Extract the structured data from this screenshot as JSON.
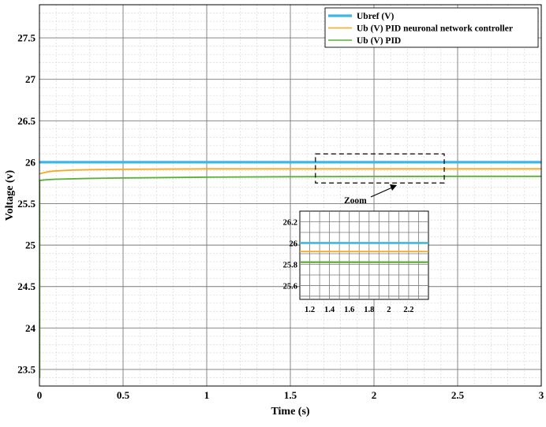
{
  "chart_data": {
    "type": "line",
    "title": "",
    "xlabel": "Time (s)",
    "ylabel": "Voltage (v)",
    "xlim": [
      0,
      3
    ],
    "ylim": [
      23.3,
      27.9
    ],
    "grid": "major and minor",
    "legend_position": "top-right",
    "x_ticks": [
      "0",
      "0.5",
      "1",
      "1.5",
      "2",
      "2.5",
      "3"
    ],
    "y_ticks": [
      "23.5",
      "24",
      "24.5",
      "25",
      "25.5",
      "26",
      "26.5",
      "27",
      "27.5"
    ],
    "series": [
      {
        "name": "Ubref (V)",
        "color": "#3db8e3",
        "x": [
          0,
          3
        ],
        "y": [
          26.0,
          26.0
        ]
      },
      {
        "name": "Ub (V) PID neuronal network controller",
        "color": "#f7a81e",
        "x": [
          0,
          0.05,
          0.1,
          0.2,
          0.3,
          0.5,
          0.8,
          1.0,
          1.5,
          2.0,
          3.0
        ],
        "y": [
          25.86,
          25.885,
          25.895,
          25.905,
          25.91,
          25.915,
          25.918,
          25.92,
          25.92,
          25.92,
          25.92
        ]
      },
      {
        "name": "Ub (V) PID",
        "color": "#5bb035",
        "x": [
          0,
          0.05,
          0.1,
          0.3,
          0.5,
          1.0,
          1.5,
          2.0,
          2.5,
          3.0
        ],
        "y": [
          25.78,
          25.79,
          25.795,
          25.805,
          25.81,
          25.82,
          25.825,
          25.828,
          25.83,
          25.83
        ]
      }
    ],
    "annotation": {
      "label": "Zoom",
      "zoom_box_x": [
        1.65,
        2.42
      ],
      "zoom_box_y": [
        25.75,
        26.1
      ]
    },
    "inset": {
      "xlim": [
        1.1,
        2.4
      ],
      "ylim": [
        25.47,
        26.3
      ],
      "x_ticks": [
        "1.2",
        "1.4",
        "1.6",
        "1.8",
        "2",
        "2.2"
      ],
      "y_ticks": [
        "25.6",
        "25.8",
        "26",
        "26.2"
      ],
      "series_y": [
        26.0,
        25.92,
        25.82
      ]
    }
  }
}
